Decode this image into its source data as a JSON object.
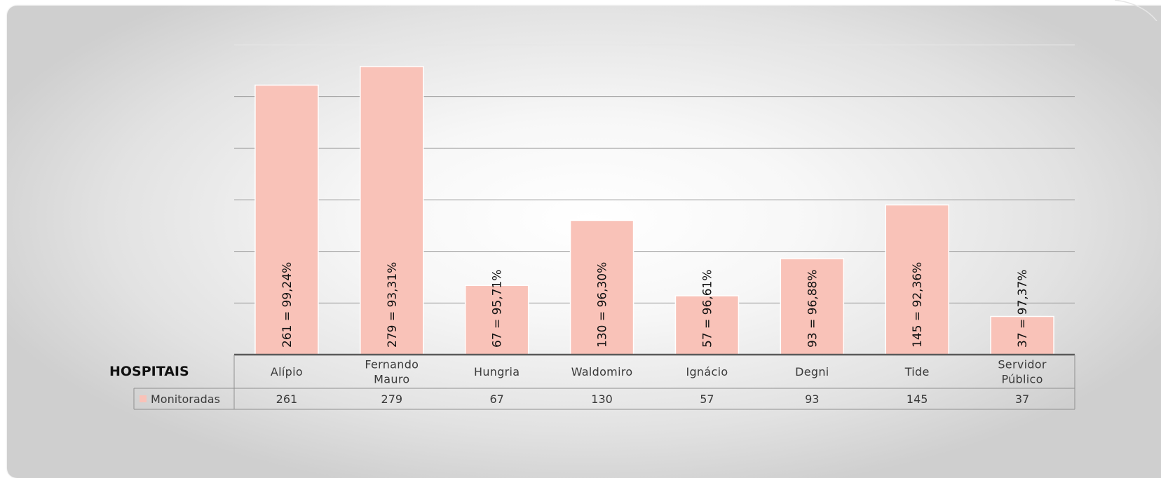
{
  "chart_data": {
    "type": "bar",
    "title": "",
    "table_header": "HOSPITAIS",
    "categories": [
      [
        "Alípio"
      ],
      [
        "Fernando",
        "Mauro"
      ],
      [
        "Hungria"
      ],
      [
        "Waldomiro"
      ],
      [
        "Ignácio"
      ],
      [
        "Degni"
      ],
      [
        "Tide"
      ],
      [
        "Servidor",
        "Público"
      ]
    ],
    "series": [
      {
        "name": "Monitoradas",
        "values": [
          261,
          279,
          67,
          130,
          57,
          93,
          145,
          37
        ],
        "table_values": [
          "261",
          "279",
          "67",
          "130",
          "57",
          "93",
          "145",
          "37"
        ],
        "bar_labels": [
          "261 = 99,24%",
          "279 = 93,31%",
          "67 = 95,71%",
          "130 = 96,30%",
          "57 = 96,61%",
          "93 = 96,88%",
          "145 = 92,36%",
          "37 = 97,37%"
        ],
        "color": "#f9c2b8"
      }
    ],
    "ylim": [
      0,
      300
    ],
    "grid": true,
    "legend": "in data table"
  }
}
